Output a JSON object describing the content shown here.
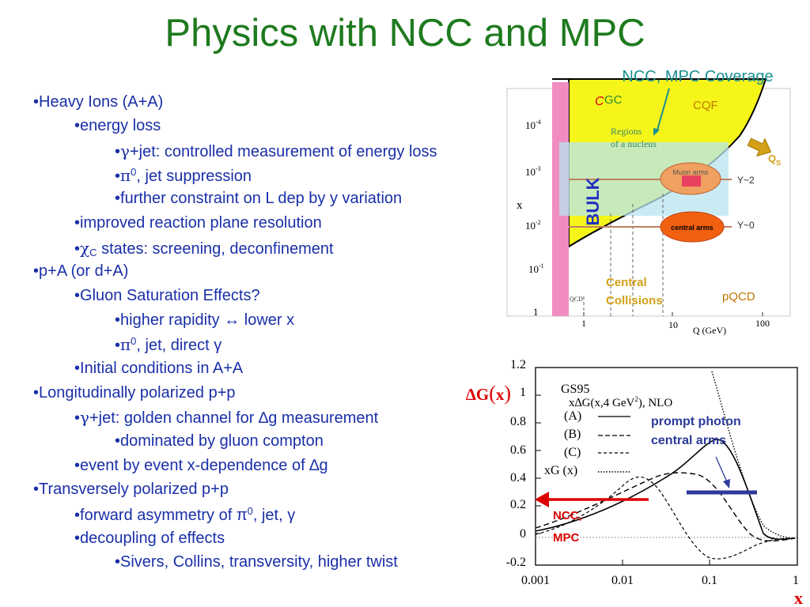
{
  "title": "Physics with NCC and MPC",
  "bullets": [
    {
      "level": 1,
      "bullet": "•",
      "text": "Heavy Ions (A+A)"
    },
    {
      "level": 2,
      "bullet": "•",
      "text": "energy loss"
    },
    {
      "level": 3,
      "bullet": "•",
      "sym": "γ",
      "text": "+jet: controlled measurement of energy loss"
    },
    {
      "level": 3,
      "bullet": "•",
      "sym": "π",
      "sup": "0",
      "text": ", jet suppression"
    },
    {
      "level": 3,
      "bullet": "•",
      "text": "further constraint on L dep by y variation"
    },
    {
      "level": 2,
      "bullet": "•",
      "text": "improved reaction plane resolution"
    },
    {
      "level": 2,
      "bullet": "•",
      "sym": "χ",
      "sub": "C",
      "text": " states: screening, deconfinement"
    },
    {
      "level": 1,
      "bullet": "•",
      "text": "p+A (or d+A)"
    },
    {
      "level": 2,
      "bullet": "•",
      "text": "Gluon Saturation Effects?"
    },
    {
      "level": 3,
      "bullet": "•",
      "text": "higher rapidity ↔ lower x"
    },
    {
      "level": 3,
      "bullet": "•",
      "sym": "π",
      "sup": "0",
      "text": ", jet, direct γ"
    },
    {
      "level": 2,
      "bullet": "•",
      "text": "Initial conditions in A+A"
    },
    {
      "level": 1,
      "bullet": "•",
      "text": "Longitudinally polarized p+p"
    },
    {
      "level": 2,
      "bullet": "•",
      "sym": "γ",
      "text": "+jet: golden channel for ∆g measurement"
    },
    {
      "level": 3,
      "bullet": "•",
      "text": "dominated by gluon compton"
    },
    {
      "level": 2,
      "bullet": "•",
      "text": "event by event x-dependence of ∆g"
    },
    {
      "level": 1,
      "bullet": "•",
      "text": "Transversely polarized p+p"
    },
    {
      "level": 2,
      "bullet": "•",
      "text": "forward asymmetry of π",
      "sup": "0",
      "text2": ", jet, γ"
    },
    {
      "level": 2,
      "bullet": "•",
      "text": "decoupling of effects"
    },
    {
      "level": 3,
      "bullet": "•",
      "text": "Sivers, Collins, transversity, higher twist"
    }
  ],
  "coverage": {
    "header": "NCC, MPC Coverage",
    "cgc_c": "C",
    "cgc_rest": "GC",
    "cqf": "CQF",
    "regions": [
      "Regions",
      "of a nucleus"
    ],
    "qs": "Q",
    "qs_sub": "S",
    "bulk": "BULK",
    "muon_arms": "Muon arms",
    "y2": "Y~2",
    "central_arms": "central arms",
    "y0": "Y~0",
    "central_collisions": [
      "Central",
      "Collisions"
    ],
    "pqcd": "pQCD",
    "qcd": "QCD",
    "x_label": "x",
    "y_ticks": [
      "10",
      "10",
      "10",
      "10",
      "1"
    ],
    "y_tick_exps": [
      "-4",
      "-3",
      "-2",
      "-1",
      ""
    ],
    "x_ticks": [
      "1",
      "10",
      "100"
    ],
    "x_axis_label": "Q (GeV)",
    "colors": {
      "yellow": "#f5f51a",
      "pink": "#f08cc0",
      "blue_band": "#b8e4f0",
      "orange": "#f0a060",
      "gold": "#d4a017"
    }
  },
  "deltag": {
    "ylabel_prefix": "∆G",
    "ylabel_arg": "x",
    "gs95": "GS95",
    "formula": "x∆G(x,4 GeV",
    "formula_sup": "2",
    "formula_end": "), NLO",
    "legend": [
      "(A)",
      "(B)",
      "(C)",
      "xG (x)"
    ],
    "prompt_photon": [
      "prompt photon",
      "central arms"
    ],
    "ncc_mpc": [
      "NCC,",
      "MPC"
    ],
    "y_ticks": [
      "1.2",
      "1",
      "0.8",
      "0.6",
      "0.4",
      "0.2",
      "0",
      "-0.2"
    ],
    "x_ticks": [
      "0.001",
      "0.01",
      "0.1",
      "1"
    ],
    "x_label": "x",
    "colors": {
      "red": "#dd0000",
      "blue": "#2b3a9a"
    }
  }
}
